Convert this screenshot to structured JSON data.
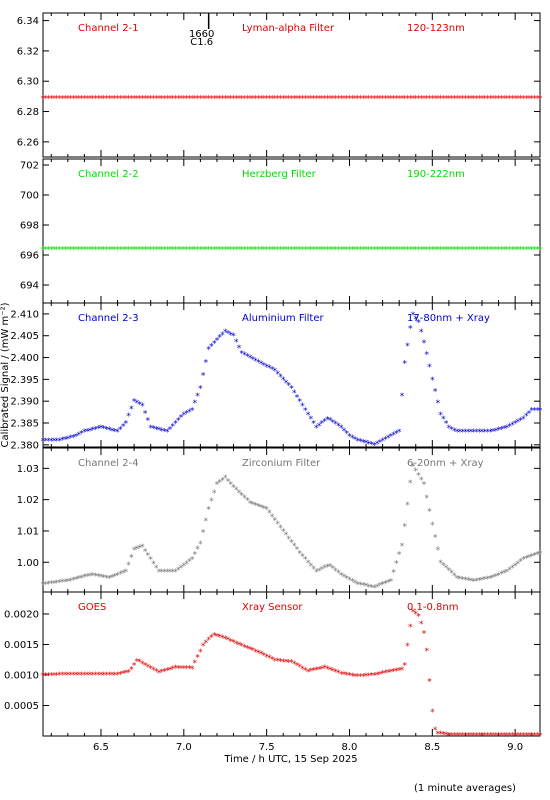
{
  "figure": {
    "xlabel": "Time / h UTC, 15 Sep 2025",
    "ylabel": "Calibrated Signal / (mW m⁻²)",
    "footnote": "(1 minute averages)",
    "event_marker": {
      "time": 7.15,
      "label_top": "1660",
      "label_bottom": "C1.6"
    }
  },
  "chart_data": [
    {
      "type": "scatter",
      "panel": "Channel 2-1",
      "labels": [
        "Channel 2-1",
        "Lyman-alpha Filter",
        "120-123nm"
      ],
      "color": "#e00000",
      "xlim": [
        6.15,
        9.15
      ],
      "ylim": [
        6.25,
        6.345
      ],
      "yticks": [
        6.26,
        6.28,
        6.3,
        6.32,
        6.34
      ],
      "ytick_labels": [
        "6.26",
        "6.28",
        "6.30",
        "6.32",
        "6.34"
      ],
      "series_points": [
        [
          6.15,
          6.289
        ],
        [
          9.15,
          6.289
        ]
      ],
      "flat_value": 6.289
    },
    {
      "type": "scatter",
      "panel": "Channel 2-2",
      "labels": [
        "Channel 2-2",
        "Herzberg Filter",
        "190-222nm"
      ],
      "color": "#00dd00",
      "xlim": [
        6.15,
        9.15
      ],
      "ylim": [
        692.8,
        702.4
      ],
      "yticks": [
        694,
        696,
        698,
        700,
        702
      ],
      "ytick_labels": [
        "694",
        "696",
        "698",
        "700",
        "702"
      ],
      "series_points": [
        [
          6.15,
          696.4
        ],
        [
          9.15,
          696.4
        ]
      ],
      "flat_value": 696.4
    },
    {
      "type": "scatter",
      "panel": "Channel 2-3",
      "labels": [
        "Channel 2-3",
        "Aluminium Filter",
        "17-80nm + Xray"
      ],
      "color": "#0000cc",
      "xlim": [
        6.15,
        9.15
      ],
      "ylim": [
        2.3795,
        2.4125
      ],
      "yticks": [
        2.38,
        2.385,
        2.39,
        2.395,
        2.4,
        2.405,
        2.41
      ],
      "ytick_labels": [
        "2.380",
        "2.385",
        "2.390",
        "2.395",
        "2.400",
        "2.405",
        "2.410"
      ],
      "series_points": [
        [
          6.15,
          2.381
        ],
        [
          6.25,
          2.381
        ],
        [
          6.35,
          2.382
        ],
        [
          6.4,
          2.383
        ],
        [
          6.5,
          2.384
        ],
        [
          6.6,
          2.383
        ],
        [
          6.65,
          2.385
        ],
        [
          6.7,
          2.39
        ],
        [
          6.75,
          2.389
        ],
        [
          6.8,
          2.384
        ],
        [
          6.9,
          2.383
        ],
        [
          6.95,
          2.385
        ],
        [
          7.0,
          2.387
        ],
        [
          7.05,
          2.388
        ],
        [
          7.1,
          2.393
        ],
        [
          7.15,
          2.402
        ],
        [
          7.25,
          2.406
        ],
        [
          7.3,
          2.405
        ],
        [
          7.35,
          2.401
        ],
        [
          7.45,
          2.399
        ],
        [
          7.55,
          2.397
        ],
        [
          7.65,
          2.393
        ],
        [
          7.75,
          2.387
        ],
        [
          7.8,
          2.384
        ],
        [
          7.87,
          2.386
        ],
        [
          7.95,
          2.384
        ],
        [
          8.0,
          2.382
        ],
        [
          8.05,
          2.381
        ],
        [
          8.15,
          2.38
        ],
        [
          8.2,
          2.381
        ],
        [
          8.3,
          2.383
        ],
        [
          8.33,
          2.398
        ],
        [
          8.38,
          2.41
        ],
        [
          8.42,
          2.408
        ],
        [
          8.46,
          2.402
        ],
        [
          8.5,
          2.395
        ],
        [
          8.55,
          2.387
        ],
        [
          8.6,
          2.384
        ],
        [
          8.65,
          2.383
        ],
        [
          8.75,
          2.383
        ],
        [
          8.85,
          2.383
        ],
        [
          8.95,
          2.384
        ],
        [
          9.05,
          2.386
        ],
        [
          9.1,
          2.388
        ],
        [
          9.15,
          2.388
        ]
      ]
    },
    {
      "type": "scatter",
      "panel": "Channel 2-4",
      "labels": [
        "Channel 2-4",
        "Zirconium Filter",
        "6-20nm + Xray"
      ],
      "color": "#777777",
      "xlim": [
        6.15,
        9.15
      ],
      "ylim": [
        0.9905,
        1.0365
      ],
      "yticks": [
        1.0,
        1.01,
        1.02,
        1.03
      ],
      "ytick_labels": [
        "1.00",
        "1.01",
        "1.02",
        "1.03"
      ],
      "series_points": [
        [
          6.15,
          0.993
        ],
        [
          6.3,
          0.994
        ],
        [
          6.37,
          0.995
        ],
        [
          6.45,
          0.996
        ],
        [
          6.55,
          0.995
        ],
        [
          6.65,
          0.997
        ],
        [
          6.7,
          1.004
        ],
        [
          6.75,
          1.005
        ],
        [
          6.85,
          0.997
        ],
        [
          6.95,
          0.997
        ],
        [
          7.05,
          1.001
        ],
        [
          7.1,
          1.006
        ],
        [
          7.15,
          1.017
        ],
        [
          7.2,
          1.025
        ],
        [
          7.25,
          1.027
        ],
        [
          7.3,
          1.024
        ],
        [
          7.4,
          1.019
        ],
        [
          7.5,
          1.017
        ],
        [
          7.6,
          1.01
        ],
        [
          7.7,
          1.003
        ],
        [
          7.8,
          0.997
        ],
        [
          7.88,
          0.999
        ],
        [
          7.95,
          0.996
        ],
        [
          8.05,
          0.993
        ],
        [
          8.15,
          0.992
        ],
        [
          8.25,
          0.994
        ],
        [
          8.32,
          1.006
        ],
        [
          8.38,
          1.031
        ],
        [
          8.45,
          1.025
        ],
        [
          8.5,
          1.012
        ],
        [
          8.55,
          1.0
        ],
        [
          8.65,
          0.995
        ],
        [
          8.75,
          0.994
        ],
        [
          8.85,
          0.995
        ],
        [
          8.95,
          0.997
        ],
        [
          9.05,
          1.001
        ],
        [
          9.15,
          1.003
        ]
      ]
    },
    {
      "type": "scatter",
      "panel": "GOES",
      "labels": [
        "GOES",
        "Xray Sensor",
        "0.1-0.8nm"
      ],
      "color": "#e00000",
      "xlim": [
        6.15,
        9.15
      ],
      "ylim": [
        0.0,
        0.00236
      ],
      "yticks": [
        0.0005,
        0.001,
        0.0015,
        0.002
      ],
      "ytick_labels": [
        "0.0005",
        "0.0010",
        "0.0015",
        "0.0020"
      ],
      "series_points": [
        [
          6.15,
          0.001
        ],
        [
          6.4,
          0.00101
        ],
        [
          6.6,
          0.00101
        ],
        [
          6.67,
          0.00105
        ],
        [
          6.72,
          0.00124
        ],
        [
          6.78,
          0.00114
        ],
        [
          6.85,
          0.00104
        ],
        [
          6.95,
          0.00112
        ],
        [
          7.05,
          0.00111
        ],
        [
          7.12,
          0.0015
        ],
        [
          7.18,
          0.00166
        ],
        [
          7.25,
          0.0016
        ],
        [
          7.35,
          0.00148
        ],
        [
          7.45,
          0.00137
        ],
        [
          7.55,
          0.00124
        ],
        [
          7.65,
          0.00121
        ],
        [
          7.75,
          0.00106
        ],
        [
          7.85,
          0.00112
        ],
        [
          7.95,
          0.00102
        ],
        [
          8.05,
          0.00098
        ],
        [
          8.15,
          0.001
        ],
        [
          8.25,
          0.00106
        ],
        [
          8.33,
          0.0011
        ],
        [
          8.38,
          0.00205
        ],
        [
          8.42,
          0.00196
        ],
        [
          8.46,
          0.0016
        ],
        [
          8.5,
          0.0004
        ],
        [
          8.52,
          5e-05
        ],
        [
          8.6,
          2e-05
        ],
        [
          9.15,
          2e-05
        ]
      ]
    }
  ],
  "x_axis": {
    "ticks": [
      6.5,
      7.0,
      7.5,
      8.0,
      8.5,
      9.0
    ],
    "tick_labels": [
      "6.5",
      "7.0",
      "7.5",
      "8.0",
      "8.5",
      "9.0"
    ],
    "xlim": [
      6.15,
      9.15
    ]
  }
}
